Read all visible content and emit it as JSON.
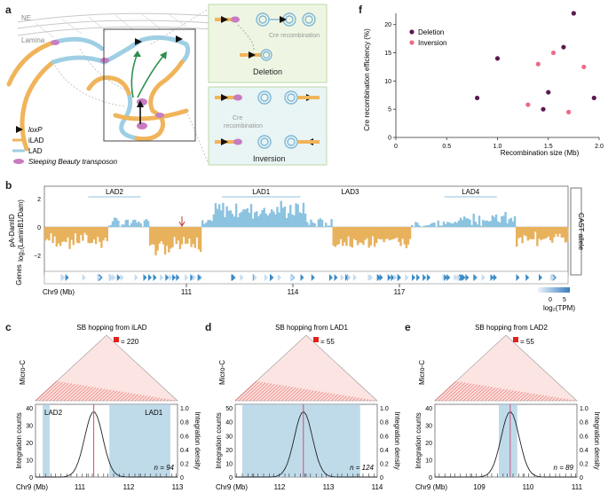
{
  "panel_labels": {
    "a": "a",
    "b": "b",
    "c": "c",
    "d": "d",
    "e": "e",
    "f": "f"
  },
  "panel_a": {
    "ne_label": "NE",
    "lamina_label": "Lamina",
    "cre_recombination": "Cre recombination",
    "cre_word": "Cre",
    "recombination_word": "recombination",
    "deletion_label": "Deletion",
    "inversion_label": "Inversion",
    "legend": {
      "loxp": "loxP",
      "ilad": "iLAD",
      "lad": "LAD",
      "transposon": "Sleeping Beauty transposon"
    },
    "colors": {
      "ilad": "#f0b45a",
      "lad": "#9ecfe4",
      "transposon": "#c77cc2",
      "loxp": "#111111"
    }
  },
  "panel_b": {
    "ylabel_1": "pA-DamID",
    "ylabel_2": "log₂(LaminB1/Dam)",
    "genes_label": "Genes",
    "cast_label": "CAST allele",
    "chr_label": "Chr9 (Mb)",
    "x_ticks": [
      "111",
      "114",
      "117"
    ],
    "y_ticks": [
      "2",
      "0",
      "−2"
    ],
    "lad_labels": [
      "LAD2",
      "LAD1",
      "LAD3",
      "LAD4"
    ],
    "tpm_label": "log₂(TPM)",
    "tpm_ticks": [
      "0",
      "5"
    ],
    "colors": {
      "positive": "#8cc3e0",
      "negative": "#e8b15c",
      "genes": "#3a8cc8"
    }
  },
  "panels_cde": [
    {
      "id": "c",
      "title": "SB hopping from iLAD",
      "max_label": "220",
      "microc": "Micro-C",
      "ylabel_left": "Integration counts",
      "ylabel_right": "Integration density",
      "chr_label": "Chr9 (Mb)",
      "x_ticks": [
        "111",
        "112",
        "113"
      ],
      "y_left_ticks": [
        "0",
        "10",
        "20",
        "30",
        "40"
      ],
      "y_right_ticks": [
        "0",
        "0.2",
        "0.4",
        "0.6",
        "0.8",
        "1.0"
      ],
      "region_labels": [
        "LAD2",
        "LAD1"
      ],
      "n_label": "n = 94"
    },
    {
      "id": "d",
      "title": "SB hopping from LAD1",
      "max_label": "55",
      "microc": "Micro-C",
      "ylabel_left": "Integration counts",
      "ylabel_right": "Integration density",
      "chr_label": "Chr9 (Mb)",
      "x_ticks": [
        "112",
        "113",
        "114"
      ],
      "y_left_ticks": [
        "0",
        "10",
        "20",
        "30",
        "40",
        "50"
      ],
      "y_right_ticks": [
        "0",
        "0.2",
        "0.4",
        "0.6",
        "0.8",
        "1.0"
      ],
      "region_labels": [],
      "n_label": "n = 124"
    },
    {
      "id": "e",
      "title": "SB hopping from LAD2",
      "max_label": "55",
      "microc": "Micro-C",
      "ylabel_left": "Integration counts",
      "ylabel_right": "Integration density",
      "chr_label": "Chr9 (Mb)",
      "x_ticks": [
        "109",
        "110",
        "111"
      ],
      "y_left_ticks": [
        "0",
        "10",
        "20",
        "30",
        "40"
      ],
      "y_right_ticks": [
        "0",
        "0.2",
        "0.4",
        "0.6",
        "0.8",
        "1.0"
      ],
      "region_labels": [],
      "n_label": "n = 89"
    }
  ],
  "chart_data": {
    "type": "scatter",
    "title": "",
    "xlabel": "Recombination size (Mb)",
    "ylabel": "Cre recombination efficiency (%)",
    "xlim": [
      0,
      2.0
    ],
    "ylim": [
      0,
      22
    ],
    "x_ticks": [
      "0",
      "0.5",
      "1.0",
      "1.5",
      "2.0"
    ],
    "y_ticks": [
      "0",
      "5",
      "10",
      "15",
      "20"
    ],
    "series": [
      {
        "name": "Deletion",
        "color": "#5b1a4f",
        "points": [
          [
            0.8,
            7
          ],
          [
            1.0,
            14
          ],
          [
            1.45,
            5
          ],
          [
            1.5,
            8
          ],
          [
            1.65,
            16
          ],
          [
            1.75,
            22
          ],
          [
            1.95,
            7
          ]
        ]
      },
      {
        "name": "Inversion",
        "color": "#ec6b86",
        "points": [
          [
            1.3,
            5.8
          ],
          [
            1.4,
            13
          ],
          [
            1.55,
            15
          ],
          [
            1.7,
            4.5
          ],
          [
            1.85,
            12.5
          ]
        ]
      }
    ]
  }
}
